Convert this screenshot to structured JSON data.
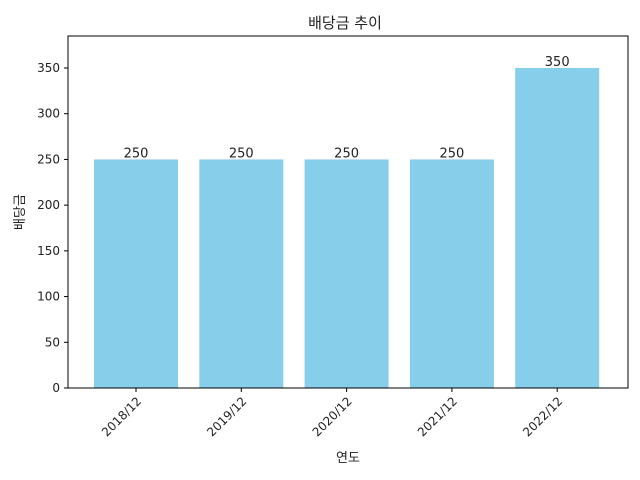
{
  "chart_data": {
    "type": "bar",
    "title": "배당금 추이",
    "xlabel": "연도",
    "ylabel": "배당금",
    "categories": [
      "2018/12",
      "2019/12",
      "2020/12",
      "2021/12",
      "2022/12"
    ],
    "values": [
      250,
      250,
      250,
      250,
      350
    ],
    "data_labels": [
      "250",
      "250",
      "250",
      "250",
      "350"
    ],
    "ylim": [
      0,
      385
    ],
    "yticks": [
      0,
      50,
      100,
      150,
      200,
      250,
      300,
      350
    ],
    "ytick_labels": [
      "0",
      "50",
      "100",
      "150",
      "200",
      "250",
      "300",
      "350"
    ],
    "bar_color": "#87ceeb",
    "grid": false,
    "legend": "none",
    "xtick_rotation": "45deg"
  }
}
